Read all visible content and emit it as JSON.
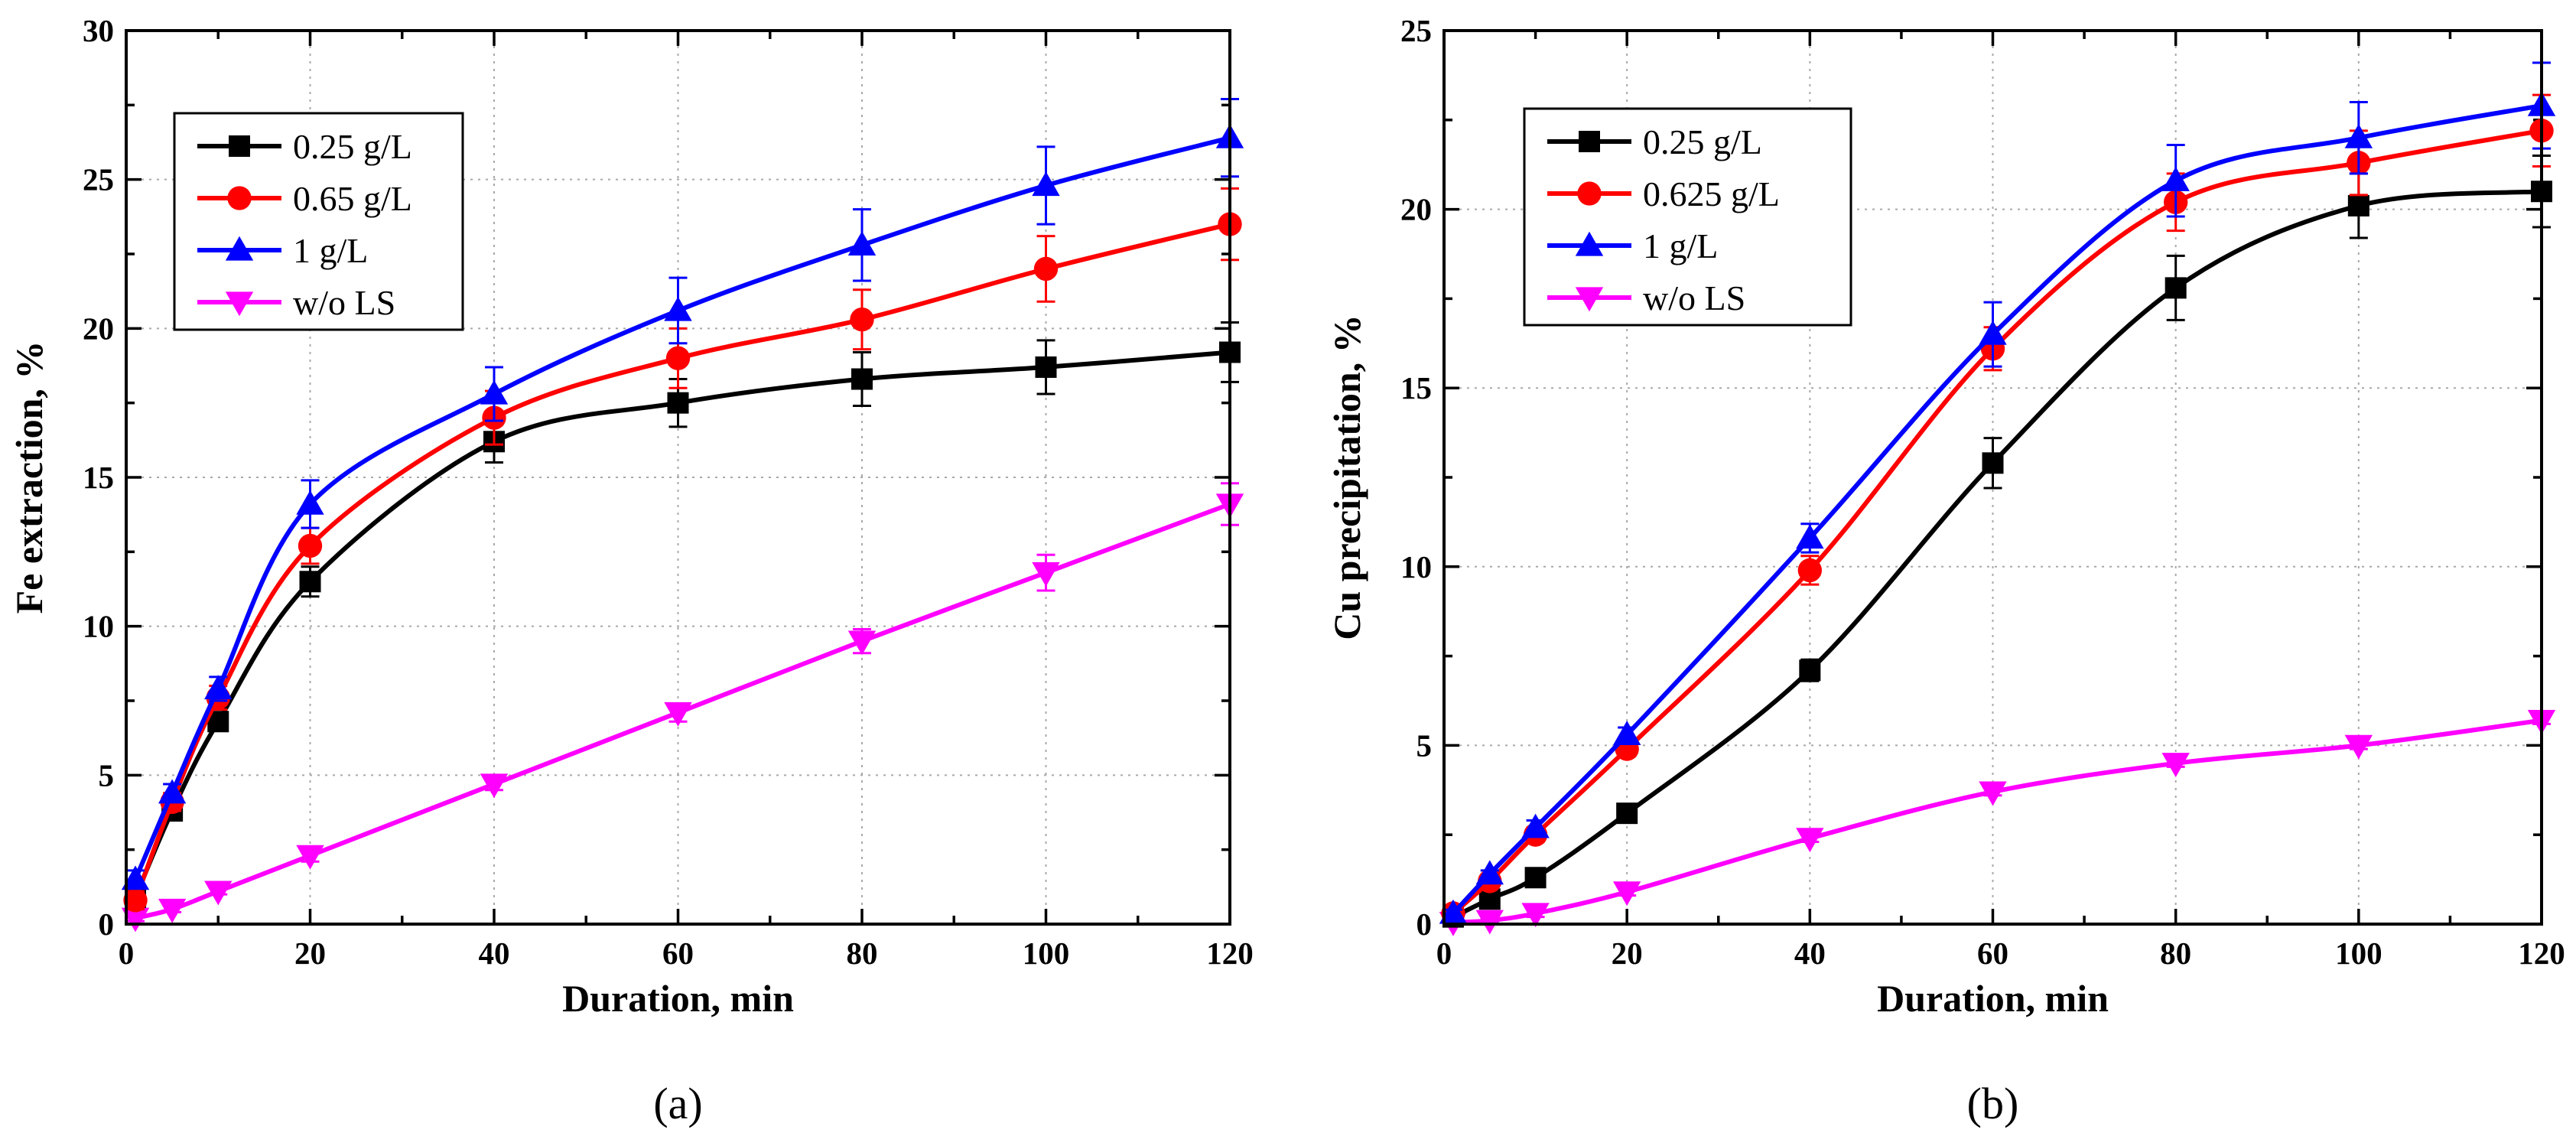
{
  "chart_data": [
    {
      "type": "line",
      "panel_label": "(a)",
      "xlabel": "Duration, min",
      "ylabel": "Fe extraction, %",
      "xlim": [
        0,
        120
      ],
      "ylim": [
        0,
        30
      ],
      "x_ticks": [
        "0",
        "20",
        "40",
        "60",
        "80",
        "100",
        "120"
      ],
      "y_ticks": [
        "0",
        "5",
        "10",
        "15",
        "20",
        "25",
        "30"
      ],
      "grid": true,
      "legend_position": "top-left",
      "x": [
        1,
        5,
        10,
        20,
        40,
        60,
        80,
        100,
        120
      ],
      "series": [
        {
          "name": "0.25 g/L",
          "color": "#000000",
          "marker": "square",
          "values": [
            0.9,
            3.8,
            6.8,
            11.5,
            16.2,
            17.5,
            18.3,
            18.7,
            19.2
          ],
          "errors": [
            0.3,
            0.3,
            0.3,
            0.5,
            0.7,
            0.8,
            0.9,
            0.9,
            1.0
          ]
        },
        {
          "name": "0.65 g/L",
          "color": "#ff0000",
          "marker": "circle",
          "values": [
            0.8,
            4.1,
            7.6,
            12.7,
            17.0,
            19.0,
            20.3,
            22.0,
            23.5
          ],
          "errors": [
            0.3,
            0.3,
            0.4,
            0.6,
            0.9,
            1.0,
            1.0,
            1.1,
            1.2
          ]
        },
        {
          "name": "1 g/L",
          "color": "#0000ff",
          "marker": "triangle-up",
          "values": [
            1.5,
            4.4,
            7.9,
            14.1,
            17.8,
            20.6,
            22.8,
            24.8,
            26.4
          ],
          "errors": [
            0.3,
            0.3,
            0.4,
            0.8,
            0.9,
            1.1,
            1.2,
            1.3,
            1.3
          ]
        },
        {
          "name": "w/o LS",
          "color": "#ff00ff",
          "marker": "triangle-down",
          "values": [
            0.2,
            0.5,
            1.1,
            2.3,
            4.7,
            7.1,
            9.5,
            11.8,
            14.1
          ],
          "errors": [
            0.1,
            0.1,
            0.1,
            0.2,
            0.2,
            0.3,
            0.4,
            0.6,
            0.7
          ]
        }
      ]
    },
    {
      "type": "line",
      "panel_label": "(b)",
      "xlabel": "Duration, min",
      "ylabel": "Cu precipitation, %",
      "xlim": [
        0,
        120
      ],
      "ylim": [
        0,
        25
      ],
      "x_ticks": [
        "0",
        "20",
        "40",
        "60",
        "80",
        "100",
        "120"
      ],
      "y_ticks": [
        "0",
        "5",
        "10",
        "15",
        "20",
        "25"
      ],
      "grid": true,
      "legend_position": "top-left",
      "x": [
        1,
        5,
        10,
        20,
        40,
        60,
        80,
        100,
        120
      ],
      "series": [
        {
          "name": "0.25 g/L",
          "color": "#000000",
          "marker": "square",
          "values": [
            0.2,
            0.7,
            1.3,
            3.1,
            7.1,
            12.9,
            17.8,
            20.1,
            20.5
          ],
          "errors": [
            0.1,
            0.1,
            0.1,
            0.2,
            0.3,
            0.7,
            0.9,
            0.9,
            1.0
          ]
        },
        {
          "name": "0.625 g/L",
          "color": "#ff0000",
          "marker": "circle",
          "values": [
            0.3,
            1.2,
            2.5,
            4.9,
            9.9,
            16.1,
            20.2,
            21.3,
            22.2
          ],
          "errors": [
            0.1,
            0.1,
            0.2,
            0.2,
            0.4,
            0.6,
            0.8,
            0.9,
            1.0
          ]
        },
        {
          "name": "1 g/L",
          "color": "#0000ff",
          "marker": "triangle-up",
          "values": [
            0.3,
            1.4,
            2.7,
            5.3,
            10.8,
            16.5,
            20.8,
            22.0,
            22.9
          ],
          "errors": [
            0.1,
            0.1,
            0.2,
            0.2,
            0.4,
            0.9,
            1.0,
            1.0,
            1.2
          ]
        },
        {
          "name": "w/o LS",
          "color": "#ff00ff",
          "marker": "triangle-down",
          "values": [
            0.05,
            0.1,
            0.3,
            0.9,
            2.4,
            3.7,
            4.5,
            5.0,
            5.7
          ],
          "errors": [
            0.05,
            0.05,
            0.1,
            0.1,
            0.1,
            0.1,
            0.1,
            0.1,
            0.1
          ]
        }
      ]
    }
  ]
}
